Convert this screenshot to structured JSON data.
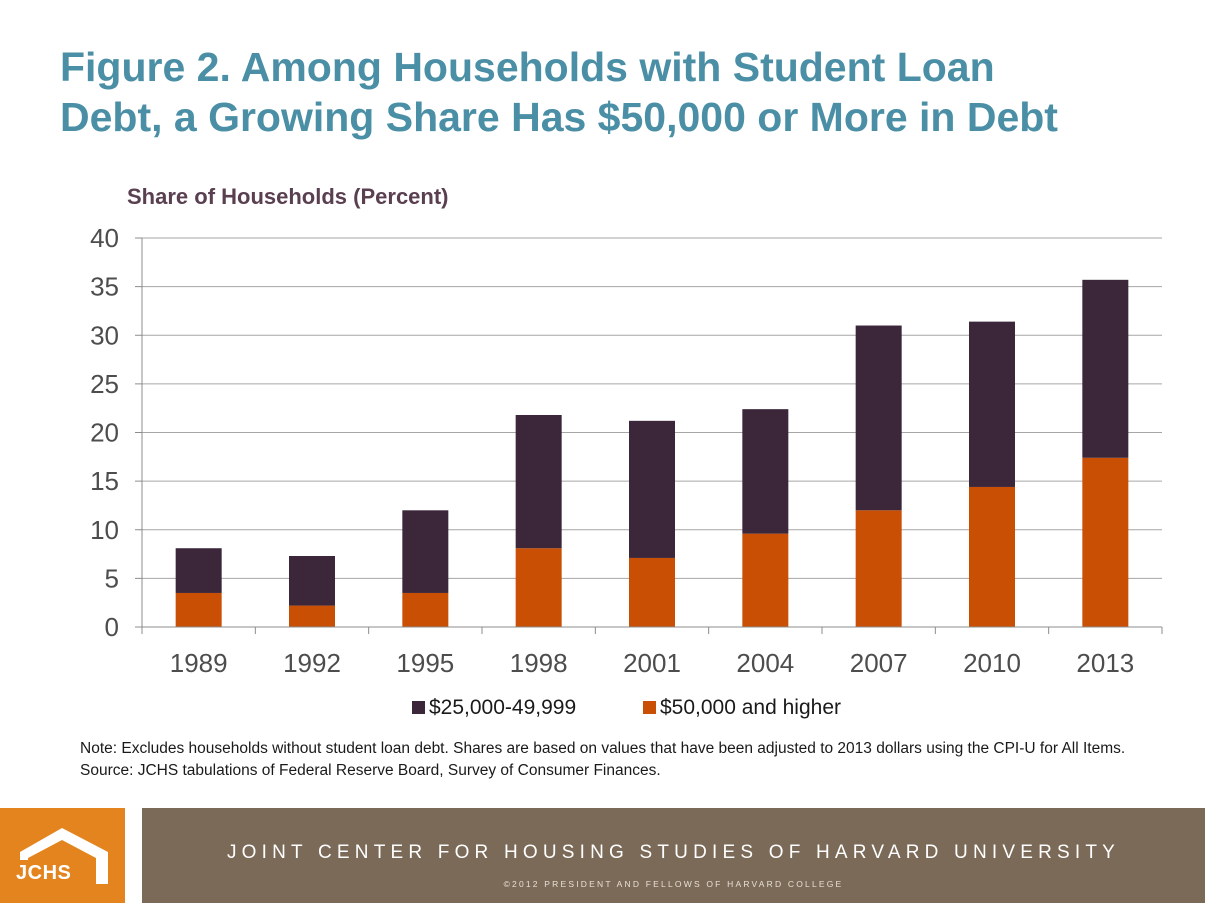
{
  "title": {
    "line1": "Figure 2. Among Households with Student Loan",
    "line2": "Debt, a Growing Share Has $50,000 or More in Debt"
  },
  "chart_data": {
    "type": "bar",
    "stacked": true,
    "ylabel": "Share of Households (Percent)",
    "xlabel": "",
    "ylim": [
      0,
      40
    ],
    "yticks": [
      "0",
      "5",
      "10",
      "15",
      "20",
      "25",
      "30",
      "35",
      "40"
    ],
    "grid": true,
    "legend_position": "bottom",
    "categories": [
      "1989",
      "1992",
      "1995",
      "1998",
      "2001",
      "2004",
      "2007",
      "2010",
      "2013"
    ],
    "series": [
      {
        "name": "$50,000 and higher",
        "color": "#c94f05",
        "values": [
          3.5,
          2.2,
          3.5,
          8.1,
          7.1,
          9.6,
          12.0,
          14.4,
          17.4
        ]
      },
      {
        "name": "$25,000-49,999",
        "color": "#3b2739",
        "values": [
          4.6,
          5.1,
          8.5,
          13.7,
          14.1,
          12.8,
          19.0,
          17.0,
          18.3
        ]
      }
    ],
    "legend_order": [
      "$25,000-49,999",
      "$50,000 and higher"
    ]
  },
  "note": {
    "line1": "Note: Excludes households without student loan debt. Shares are based on values that have been adjusted to 2013 dollars using the CPI-U for All Items.",
    "line2": "Source: JCHS tabulations of Federal Reserve Board, Survey of Consumer Finances."
  },
  "footer": {
    "logo_text": "JCHS",
    "org_name": "JOINT CENTER FOR HOUSING STUDIES OF HARVARD UNIVERSITY",
    "copyright": "©2012 PRESIDENT AND FELLOWS OF HARVARD COLLEGE",
    "logo_color": "#e4841f",
    "band_color": "#7b6a58"
  }
}
